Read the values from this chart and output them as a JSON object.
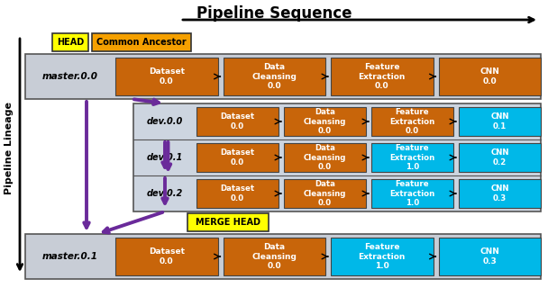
{
  "title": "Pipeline Sequence",
  "ylabel": "Pipeline Lineage",
  "colors": {
    "orange": "#c8650a",
    "light_blue": "#00b8e8",
    "light_gray_cell": "#b8c4d0",
    "yellow": "#ffff00",
    "amber": "#f5a000",
    "purple": "#6a2a9a",
    "row_bg_master": "#c8cdd6",
    "row_bg_dev": "#cdd5e0",
    "white": "#ffffff",
    "black": "#000000"
  },
  "master00": {
    "label": "master.0.0",
    "cells": [
      {
        "text": "Dataset\n0.0",
        "color": "#c8650a"
      },
      {
        "text": "Data\nCleansing\n0.0",
        "color": "#c8650a"
      },
      {
        "text": "Feature\nExtraction\n0.0",
        "color": "#c8650a"
      },
      {
        "text": "CNN\n0.0",
        "color": "#c8650a"
      }
    ]
  },
  "dev_rows": [
    {
      "label": "dev.0.0",
      "cells": [
        {
          "text": "Dataset\n0.0",
          "color": "#c8650a"
        },
        {
          "text": "Data\nCleansing\n0.0",
          "color": "#c8650a"
        },
        {
          "text": "Feature\nExtraction\n0.0",
          "color": "#c8650a"
        },
        {
          "text": "CNN\n0.1",
          "color": "#00b8e8"
        }
      ]
    },
    {
      "label": "dev.0.1",
      "cells": [
        {
          "text": "Dataset\n0.0",
          "color": "#c8650a"
        },
        {
          "text": "Data\nCleansing\n0.0",
          "color": "#c8650a"
        },
        {
          "text": "Feature\nExtraction\n1.0",
          "color": "#00b8e8"
        },
        {
          "text": "CNN\n0.2",
          "color": "#00b8e8"
        }
      ]
    },
    {
      "label": "dev.0.2",
      "cells": [
        {
          "text": "Dataset\n0.0",
          "color": "#c8650a"
        },
        {
          "text": "Data\nCleansing\n0.0",
          "color": "#c8650a"
        },
        {
          "text": "Feature\nExtraction\n1.0",
          "color": "#00b8e8"
        },
        {
          "text": "CNN\n0.3",
          "color": "#00b8e8"
        }
      ]
    }
  ],
  "master01": {
    "label": "master.0.1",
    "cells": [
      {
        "text": "Dataset\n0.0",
        "color": "#c8650a"
      },
      {
        "text": "Data\nCleansing\n0.0",
        "color": "#c8650a"
      },
      {
        "text": "Feature\nExtraction\n1.0",
        "color": "#00b8e8"
      },
      {
        "text": "CNN\n0.3",
        "color": "#00b8e8"
      }
    ]
  }
}
